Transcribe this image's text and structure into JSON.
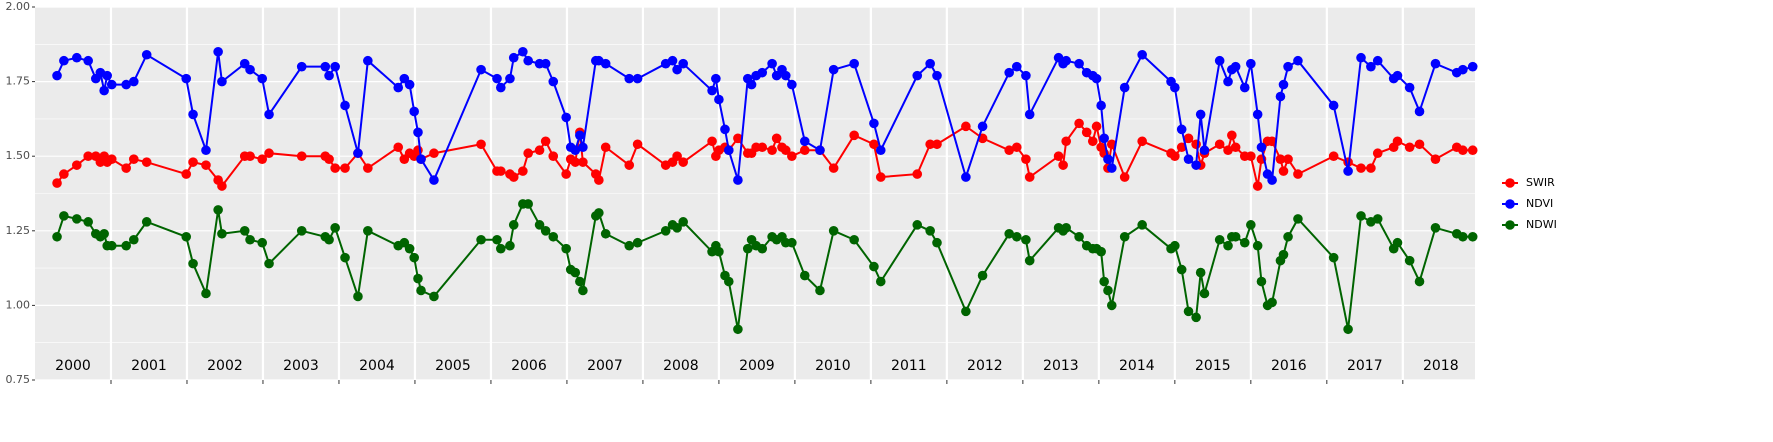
{
  "chart_data": {
    "type": "line",
    "x": [
      2000.29,
      2000.38,
      2000.55,
      2000.7,
      2000.8,
      2000.86,
      2000.91,
      2000.95,
      2001.01,
      2001.2,
      2001.3,
      2001.47,
      2001.99,
      2002.08,
      2002.25,
      2002.41,
      2002.46,
      2002.76,
      2002.83,
      2002.99,
      2003.08,
      2003.51,
      2003.82,
      2003.87,
      2003.95,
      2004.08,
      2004.25,
      2004.38,
      2004.78,
      2004.86,
      2004.93,
      2004.99,
      2005.04,
      2005.08,
      2005.25,
      2005.87,
      2006.08,
      2006.13,
      2006.25,
      2006.3,
      2006.42,
      2006.49,
      2006.64,
      2006.72,
      2006.82,
      2006.99,
      2007.05,
      2007.11,
      2007.17,
      2007.21,
      2007.38,
      2007.42,
      2007.51,
      2007.82,
      2007.93,
      2008.3,
      2008.39,
      2008.45,
      2008.53,
      2008.91,
      2008.96,
      2009.0,
      2009.08,
      2009.13,
      2009.25,
      2009.38,
      2009.43,
      2009.49,
      2009.57,
      2009.7,
      2009.76,
      2009.83,
      2009.88,
      2009.96,
      2010.13,
      2010.33,
      2010.51,
      2010.78,
      2011.04,
      2011.13,
      2011.61,
      2011.78,
      2011.87,
      2012.25,
      2012.47,
      2012.82,
      2012.92,
      2013.04,
      2013.09,
      2013.47,
      2013.53,
      2013.57,
      2013.74,
      2013.84,
      2013.92,
      2013.97,
      2014.03,
      2014.07,
      2014.12,
      2014.17,
      2014.34,
      2014.57,
      2014.95,
      2015.0,
      2015.09,
      2015.18,
      2015.28,
      2015.34,
      2015.39,
      2015.59,
      2015.7,
      2015.75,
      2015.8,
      2015.92,
      2016.0,
      2016.09,
      2016.14,
      2016.22,
      2016.28,
      2016.39,
      2016.43,
      2016.49,
      2016.62,
      2017.09,
      2017.28,
      2017.45,
      2017.58,
      2017.67,
      2017.88,
      2017.93,
      2018.09,
      2018.22,
      2018.43,
      2018.71,
      2018.79,
      2018.92
    ],
    "series": [
      {
        "name": "SWIR",
        "color": "#ff0000",
        "values": [
          1.41,
          1.44,
          1.47,
          1.5,
          1.5,
          1.48,
          1.5,
          1.48,
          1.49,
          1.46,
          1.49,
          1.48,
          1.44,
          1.48,
          1.47,
          1.42,
          1.4,
          1.5,
          1.5,
          1.49,
          1.51,
          1.5,
          1.5,
          1.49,
          1.46,
          1.46,
          1.51,
          1.46,
          1.53,
          1.49,
          1.51,
          1.5,
          1.52,
          1.49,
          1.51,
          1.54,
          1.45,
          1.45,
          1.44,
          1.43,
          1.45,
          1.51,
          1.52,
          1.55,
          1.5,
          1.44,
          1.49,
          1.48,
          1.58,
          1.48,
          1.44,
          1.42,
          1.53,
          1.47,
          1.54,
          1.47,
          1.48,
          1.5,
          1.48,
          1.55,
          1.5,
          1.52,
          1.53,
          1.52,
          1.56,
          1.51,
          1.51,
          1.53,
          1.53,
          1.52,
          1.56,
          1.53,
          1.52,
          1.5,
          1.52,
          1.52,
          1.46,
          1.57,
          1.54,
          1.43,
          1.44,
          1.54,
          1.54,
          1.6,
          1.56,
          1.52,
          1.53,
          1.49,
          1.43,
          1.5,
          1.47,
          1.55,
          1.61,
          1.58,
          1.55,
          1.6,
          1.53,
          1.51,
          1.46,
          1.54,
          1.43,
          1.55,
          1.51,
          1.5,
          1.53,
          1.56,
          1.54,
          1.47,
          1.51,
          1.54,
          1.52,
          1.57,
          1.53,
          1.5,
          1.5,
          1.4,
          1.49,
          1.55,
          1.55,
          1.49,
          1.45,
          1.49,
          1.44,
          1.5,
          1.48,
          1.46,
          1.46,
          1.51,
          1.53,
          1.55,
          1.53,
          1.54,
          1.49,
          1.53,
          1.52,
          1.52
        ]
      },
      {
        "name": "NDVI",
        "color": "#0000ff",
        "values": [
          1.77,
          1.82,
          1.83,
          1.82,
          1.76,
          1.78,
          1.72,
          1.77,
          1.74,
          1.74,
          1.75,
          1.84,
          1.76,
          1.64,
          1.52,
          1.85,
          1.75,
          1.81,
          1.79,
          1.76,
          1.64,
          1.8,
          1.8,
          1.77,
          1.8,
          1.67,
          1.51,
          1.82,
          1.73,
          1.76,
          1.74,
          1.65,
          1.58,
          1.49,
          1.42,
          1.79,
          1.76,
          1.73,
          1.76,
          1.83,
          1.85,
          1.82,
          1.81,
          1.81,
          1.75,
          1.63,
          1.53,
          1.52,
          1.57,
          1.53,
          1.82,
          1.82,
          1.81,
          1.76,
          1.76,
          1.81,
          1.82,
          1.79,
          1.81,
          1.72,
          1.76,
          1.69,
          1.59,
          1.52,
          1.42,
          1.76,
          1.74,
          1.77,
          1.78,
          1.81,
          1.77,
          1.79,
          1.77,
          1.74,
          1.55,
          1.52,
          1.79,
          1.81,
          1.61,
          1.52,
          1.77,
          1.81,
          1.77,
          1.43,
          1.6,
          1.78,
          1.8,
          1.77,
          1.64,
          1.83,
          1.81,
          1.82,
          1.81,
          1.78,
          1.77,
          1.76,
          1.67,
          1.56,
          1.49,
          1.46,
          1.73,
          1.84,
          1.75,
          1.73,
          1.59,
          1.49,
          1.47,
          1.64,
          1.52,
          1.82,
          1.75,
          1.79,
          1.8,
          1.73,
          1.81,
          1.64,
          1.53,
          1.44,
          1.42,
          1.7,
          1.74,
          1.8,
          1.82,
          1.67,
          1.45,
          1.83,
          1.8,
          1.82,
          1.76,
          1.77,
          1.73,
          1.65,
          1.81,
          1.78,
          1.79,
          1.8
        ]
      },
      {
        "name": "NDWI",
        "color": "#006400",
        "values": [
          1.23,
          1.3,
          1.29,
          1.28,
          1.24,
          1.23,
          1.24,
          1.2,
          1.2,
          1.2,
          1.22,
          1.28,
          1.23,
          1.14,
          1.04,
          1.32,
          1.24,
          1.25,
          1.22,
          1.21,
          1.14,
          1.25,
          1.23,
          1.22,
          1.26,
          1.16,
          1.03,
          1.25,
          1.2,
          1.21,
          1.19,
          1.16,
          1.09,
          1.05,
          1.03,
          1.22,
          1.22,
          1.19,
          1.2,
          1.27,
          1.34,
          1.34,
          1.27,
          1.25,
          1.23,
          1.19,
          1.12,
          1.11,
          1.08,
          1.05,
          1.3,
          1.31,
          1.24,
          1.2,
          1.21,
          1.25,
          1.27,
          1.26,
          1.28,
          1.18,
          1.2,
          1.18,
          1.1,
          1.08,
          0.92,
          1.19,
          1.22,
          1.2,
          1.19,
          1.23,
          1.22,
          1.23,
          1.21,
          1.21,
          1.1,
          1.05,
          1.25,
          1.22,
          1.13,
          1.08,
          1.27,
          1.25,
          1.21,
          0.98,
          1.1,
          1.24,
          1.23,
          1.22,
          1.15,
          1.26,
          1.25,
          1.26,
          1.23,
          1.2,
          1.19,
          1.19,
          1.18,
          1.08,
          1.05,
          1.0,
          1.23,
          1.27,
          1.19,
          1.2,
          1.12,
          0.98,
          0.96,
          1.11,
          1.04,
          1.22,
          1.2,
          1.23,
          1.23,
          1.21,
          1.27,
          1.2,
          1.08,
          1.0,
          1.01,
          1.15,
          1.17,
          1.23,
          1.29,
          1.16,
          0.92,
          1.3,
          1.28,
          1.29,
          1.19,
          1.21,
          1.15,
          1.08,
          1.26,
          1.24,
          1.23,
          1.23
        ]
      }
    ],
    "xlim": [
      2000,
      2018.95
    ],
    "xgrid": [
      2001,
      2002,
      2003,
      2004,
      2005,
      2006,
      2007,
      2008,
      2009,
      2010,
      2011,
      2012,
      2013,
      2014,
      2015,
      2016,
      2017,
      2018
    ],
    "xticks": [
      {
        "value": 2000.5,
        "label": "2000"
      },
      {
        "value": 2001.5,
        "label": "2001"
      },
      {
        "value": 2002.5,
        "label": "2002"
      },
      {
        "value": 2003.5,
        "label": "2003"
      },
      {
        "value": 2004.5,
        "label": "2004"
      },
      {
        "value": 2005.5,
        "label": "2005"
      },
      {
        "value": 2006.5,
        "label": "2006"
      },
      {
        "value": 2007.5,
        "label": "2007"
      },
      {
        "value": 2008.5,
        "label": "2008"
      },
      {
        "value": 2009.5,
        "label": "2009"
      },
      {
        "value": 2010.5,
        "label": "2010"
      },
      {
        "value": 2011.5,
        "label": "2011"
      },
      {
        "value": 2012.5,
        "label": "2012"
      },
      {
        "value": 2013.5,
        "label": "2013"
      },
      {
        "value": 2014.5,
        "label": "2014"
      },
      {
        "value": 2015.5,
        "label": "2015"
      },
      {
        "value": 2016.5,
        "label": "2016"
      },
      {
        "value": 2017.5,
        "label": "2017"
      },
      {
        "value": 2018.5,
        "label": "2018"
      }
    ],
    "ylim": [
      0.75,
      2.0
    ],
    "yticks": [
      {
        "value": 0.75,
        "label": "0.75"
      },
      {
        "value": 1.0,
        "label": "1.00"
      },
      {
        "value": 1.25,
        "label": "1.25"
      },
      {
        "value": 1.5,
        "label": "1.50"
      },
      {
        "value": 1.75,
        "label": "1.75"
      },
      {
        "value": 2.0,
        "label": "2.00"
      }
    ],
    "yminor": [
      0.875,
      1.125,
      1.375,
      1.625,
      1.875
    ],
    "grid": true,
    "legend": "right"
  }
}
